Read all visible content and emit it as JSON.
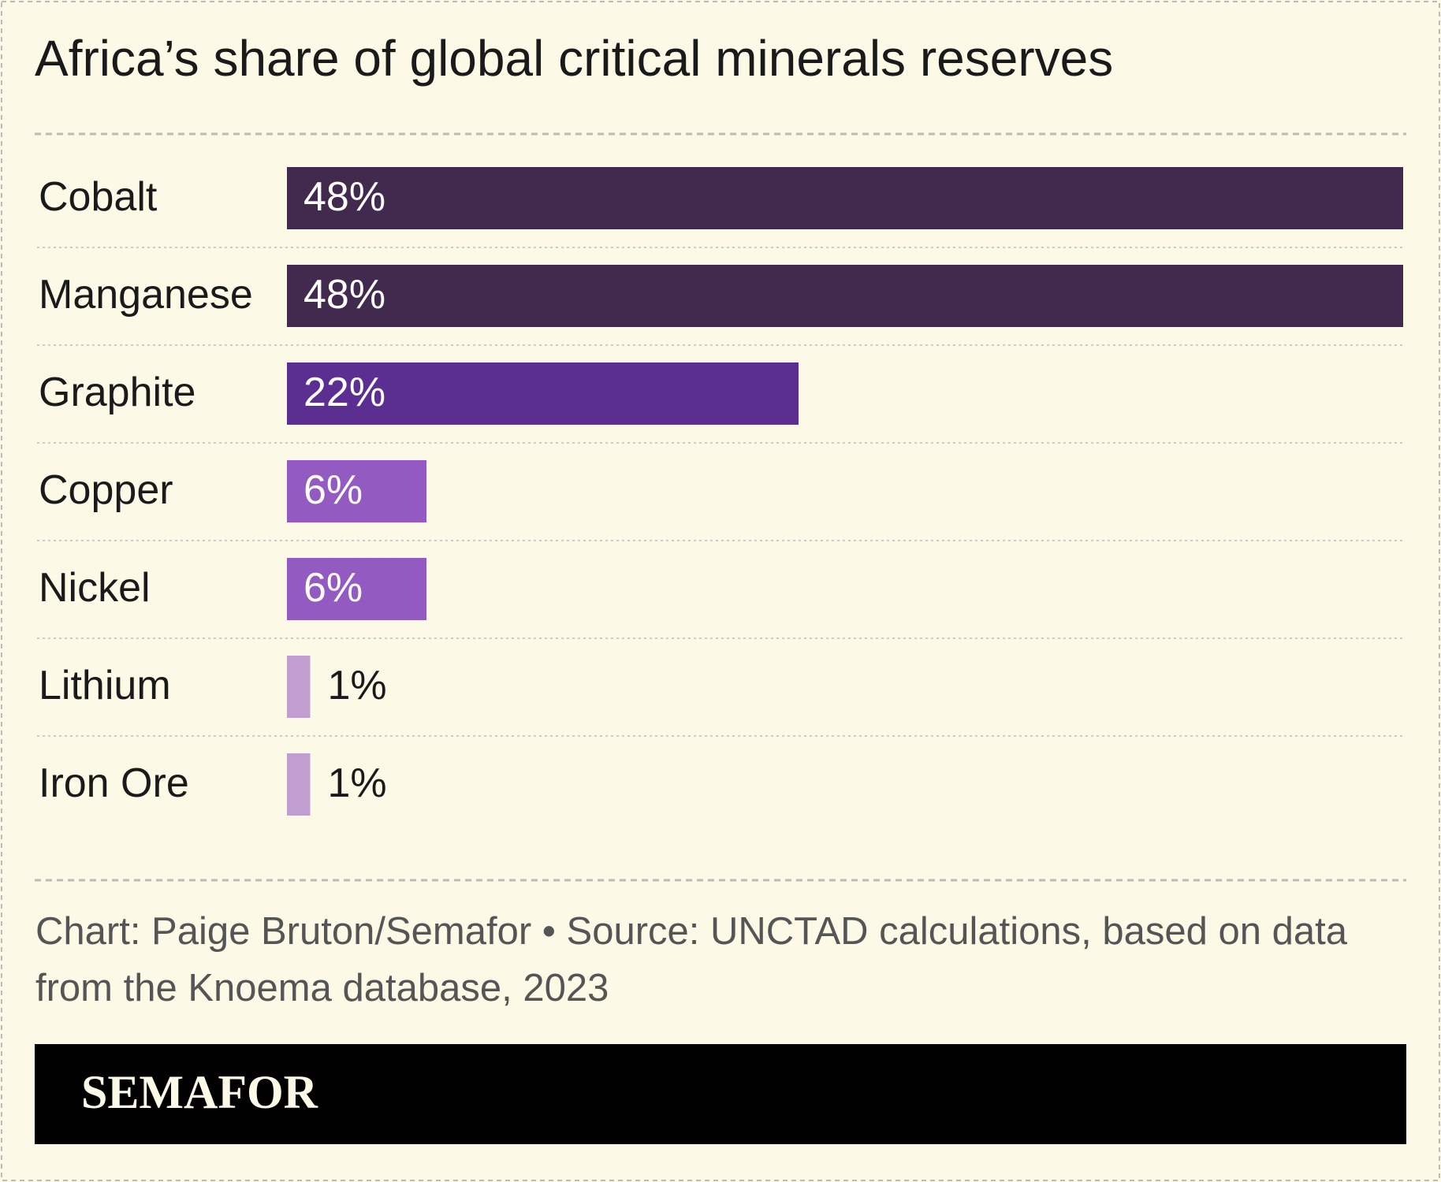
{
  "chart_data": {
    "type": "bar",
    "orientation": "horizontal",
    "title": "Africa’s share of global critical minerals reserves",
    "categories": [
      "Cobalt",
      "Manganese",
      "Graphite",
      "Copper",
      "Nickel",
      "Lithium",
      "Iron Ore"
    ],
    "values": [
      48,
      48,
      22,
      6,
      6,
      1,
      1
    ],
    "value_labels": [
      "48%",
      "48%",
      "22%",
      "6%",
      "6%",
      "1%",
      "1%"
    ],
    "colors": [
      "#422a4f",
      "#422a4f",
      "#5b2e91",
      "#935ac2",
      "#935ac2",
      "#c09fd0",
      "#c09fd0"
    ],
    "xlim": [
      0,
      48
    ],
    "source": "Chart: Paige Bruton/Semafor • Source: UNCTAD calculations, based on data from the Knoema database, 2023",
    "brand": "SEMAFOR"
  }
}
